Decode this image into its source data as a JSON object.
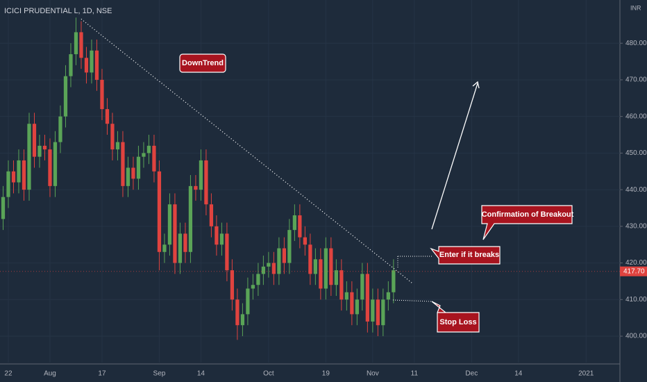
{
  "chart_data": {
    "type": "candlestick",
    "title": "ICICI PRUDENTIAL L, 1D, NSE",
    "currency": "INR",
    "up_color": "#5aa457",
    "down_color": "#e0433f",
    "x": [
      -1,
      0,
      1,
      2,
      3,
      4,
      5,
      6,
      7,
      8,
      9,
      10,
      11,
      12,
      13,
      14,
      15,
      16,
      17,
      18,
      19,
      20,
      21,
      22,
      23,
      24,
      25,
      26,
      27,
      28,
      29,
      30,
      31,
      32,
      33,
      34,
      35,
      36,
      37,
      38,
      39,
      40,
      41,
      42,
      43,
      44,
      45,
      46,
      47,
      48,
      49,
      50,
      51,
      52,
      53,
      54,
      55,
      56,
      57,
      58,
      59,
      60,
      61,
      62,
      63,
      64,
      65,
      66,
      67,
      68,
      69,
      70,
      71,
      72,
      73,
      74
    ],
    "open": [
      432,
      438,
      445,
      442,
      448,
      440,
      458,
      449,
      452,
      451,
      441,
      453,
      460,
      471,
      477,
      483,
      476,
      472,
      478,
      470,
      462,
      458,
      451,
      453,
      441,
      446,
      443,
      449,
      450,
      452,
      445,
      423,
      425,
      436,
      420,
      428,
      423,
      441,
      440,
      448,
      436,
      430,
      425,
      428,
      418,
      410,
      403,
      406,
      413,
      414,
      417,
      419,
      420,
      417,
      424,
      420,
      429,
      433,
      427,
      425,
      417,
      421,
      413,
      424,
      414,
      418,
      410,
      412,
      406,
      410,
      417,
      404,
      410,
      403,
      410,
      412
    ],
    "high": [
      441,
      448,
      448,
      451,
      451,
      461,
      461,
      455,
      455,
      454,
      456,
      463,
      474,
      480,
      487,
      486,
      479,
      481,
      481,
      473,
      465,
      461,
      456,
      456,
      449,
      449,
      452,
      453,
      455,
      455,
      448,
      428,
      439,
      439,
      431,
      431,
      444,
      444,
      451,
      451,
      439,
      433,
      431,
      431,
      421,
      413,
      409,
      416,
      417,
      420,
      422,
      423,
      423,
      427,
      427,
      432,
      436,
      436,
      430,
      428,
      424,
      424,
      427,
      427,
      421,
      421,
      415,
      415,
      413,
      420,
      420,
      413,
      413,
      413,
      415,
      421
    ],
    "low": [
      429,
      435,
      439,
      439,
      437,
      437,
      446,
      446,
      448,
      438,
      438,
      450,
      457,
      468,
      474,
      473,
      469,
      469,
      467,
      459,
      455,
      448,
      448,
      438,
      438,
      440,
      440,
      446,
      447,
      442,
      418,
      420,
      422,
      417,
      417,
      420,
      420,
      437,
      437,
      433,
      427,
      422,
      422,
      415,
      407,
      399,
      400,
      403,
      410,
      411,
      414,
      416,
      414,
      414,
      417,
      417,
      426,
      424,
      422,
      414,
      414,
      410,
      410,
      411,
      411,
      407,
      407,
      403,
      403,
      407,
      401,
      401,
      400,
      400,
      407,
      409
    ],
    "close": [
      438,
      445,
      442,
      448,
      440,
      458,
      449,
      452,
      451,
      441,
      453,
      460,
      471,
      477,
      483,
      476,
      472,
      478,
      470,
      462,
      458,
      451,
      453,
      441,
      446,
      443,
      449,
      450,
      452,
      445,
      423,
      425,
      436,
      420,
      428,
      423,
      441,
      440,
      448,
      436,
      430,
      425,
      428,
      418,
      410,
      403,
      406,
      413,
      414,
      417,
      419,
      420,
      417,
      424,
      420,
      429,
      433,
      427,
      425,
      417,
      421,
      413,
      424,
      414,
      418,
      410,
      412,
      406,
      410,
      417,
      404,
      410,
      403,
      410,
      412,
      418
    ],
    "xlim": [
      -1.6,
      117.5
    ],
    "ylim": [
      392.8,
      491.8
    ],
    "xticks": [
      {
        "value": 0,
        "label": "22"
      },
      {
        "value": 8,
        "label": "Aug"
      },
      {
        "value": 18,
        "label": "17"
      },
      {
        "value": 29,
        "label": "Sep"
      },
      {
        "value": 37,
        "label": "14"
      },
      {
        "value": 50,
        "label": "Oct"
      },
      {
        "value": 61,
        "label": "19"
      },
      {
        "value": 70,
        "label": "Nov"
      },
      {
        "value": 78,
        "label": "11"
      },
      {
        "value": 89,
        "label": "Dec"
      },
      {
        "value": 98,
        "label": "14"
      },
      {
        "value": 111,
        "label": "2021"
      }
    ],
    "yticks": [
      {
        "value": 400,
        "label": "400.00"
      },
      {
        "value": 410,
        "label": "410.00"
      },
      {
        "value": 420,
        "label": "420.00"
      },
      {
        "value": 430,
        "label": "430.00"
      },
      {
        "value": 440,
        "label": "440.00"
      },
      {
        "value": 450,
        "label": "450.00"
      },
      {
        "value": 460,
        "label": "460.00"
      },
      {
        "value": 470,
        "label": "470.00"
      },
      {
        "value": 480,
        "label": "480.00"
      }
    ],
    "last_price": {
      "value": 417.7,
      "label": "417.70"
    },
    "trendline": {
      "x": [
        14,
        77.5
      ],
      "y": [
        486.6,
        414.6
      ]
    },
    "annotations": [
      "DownTrend",
      "Confirmation of Breakout",
      "Enter if it breaks",
      "Stop Loss"
    ]
  }
}
